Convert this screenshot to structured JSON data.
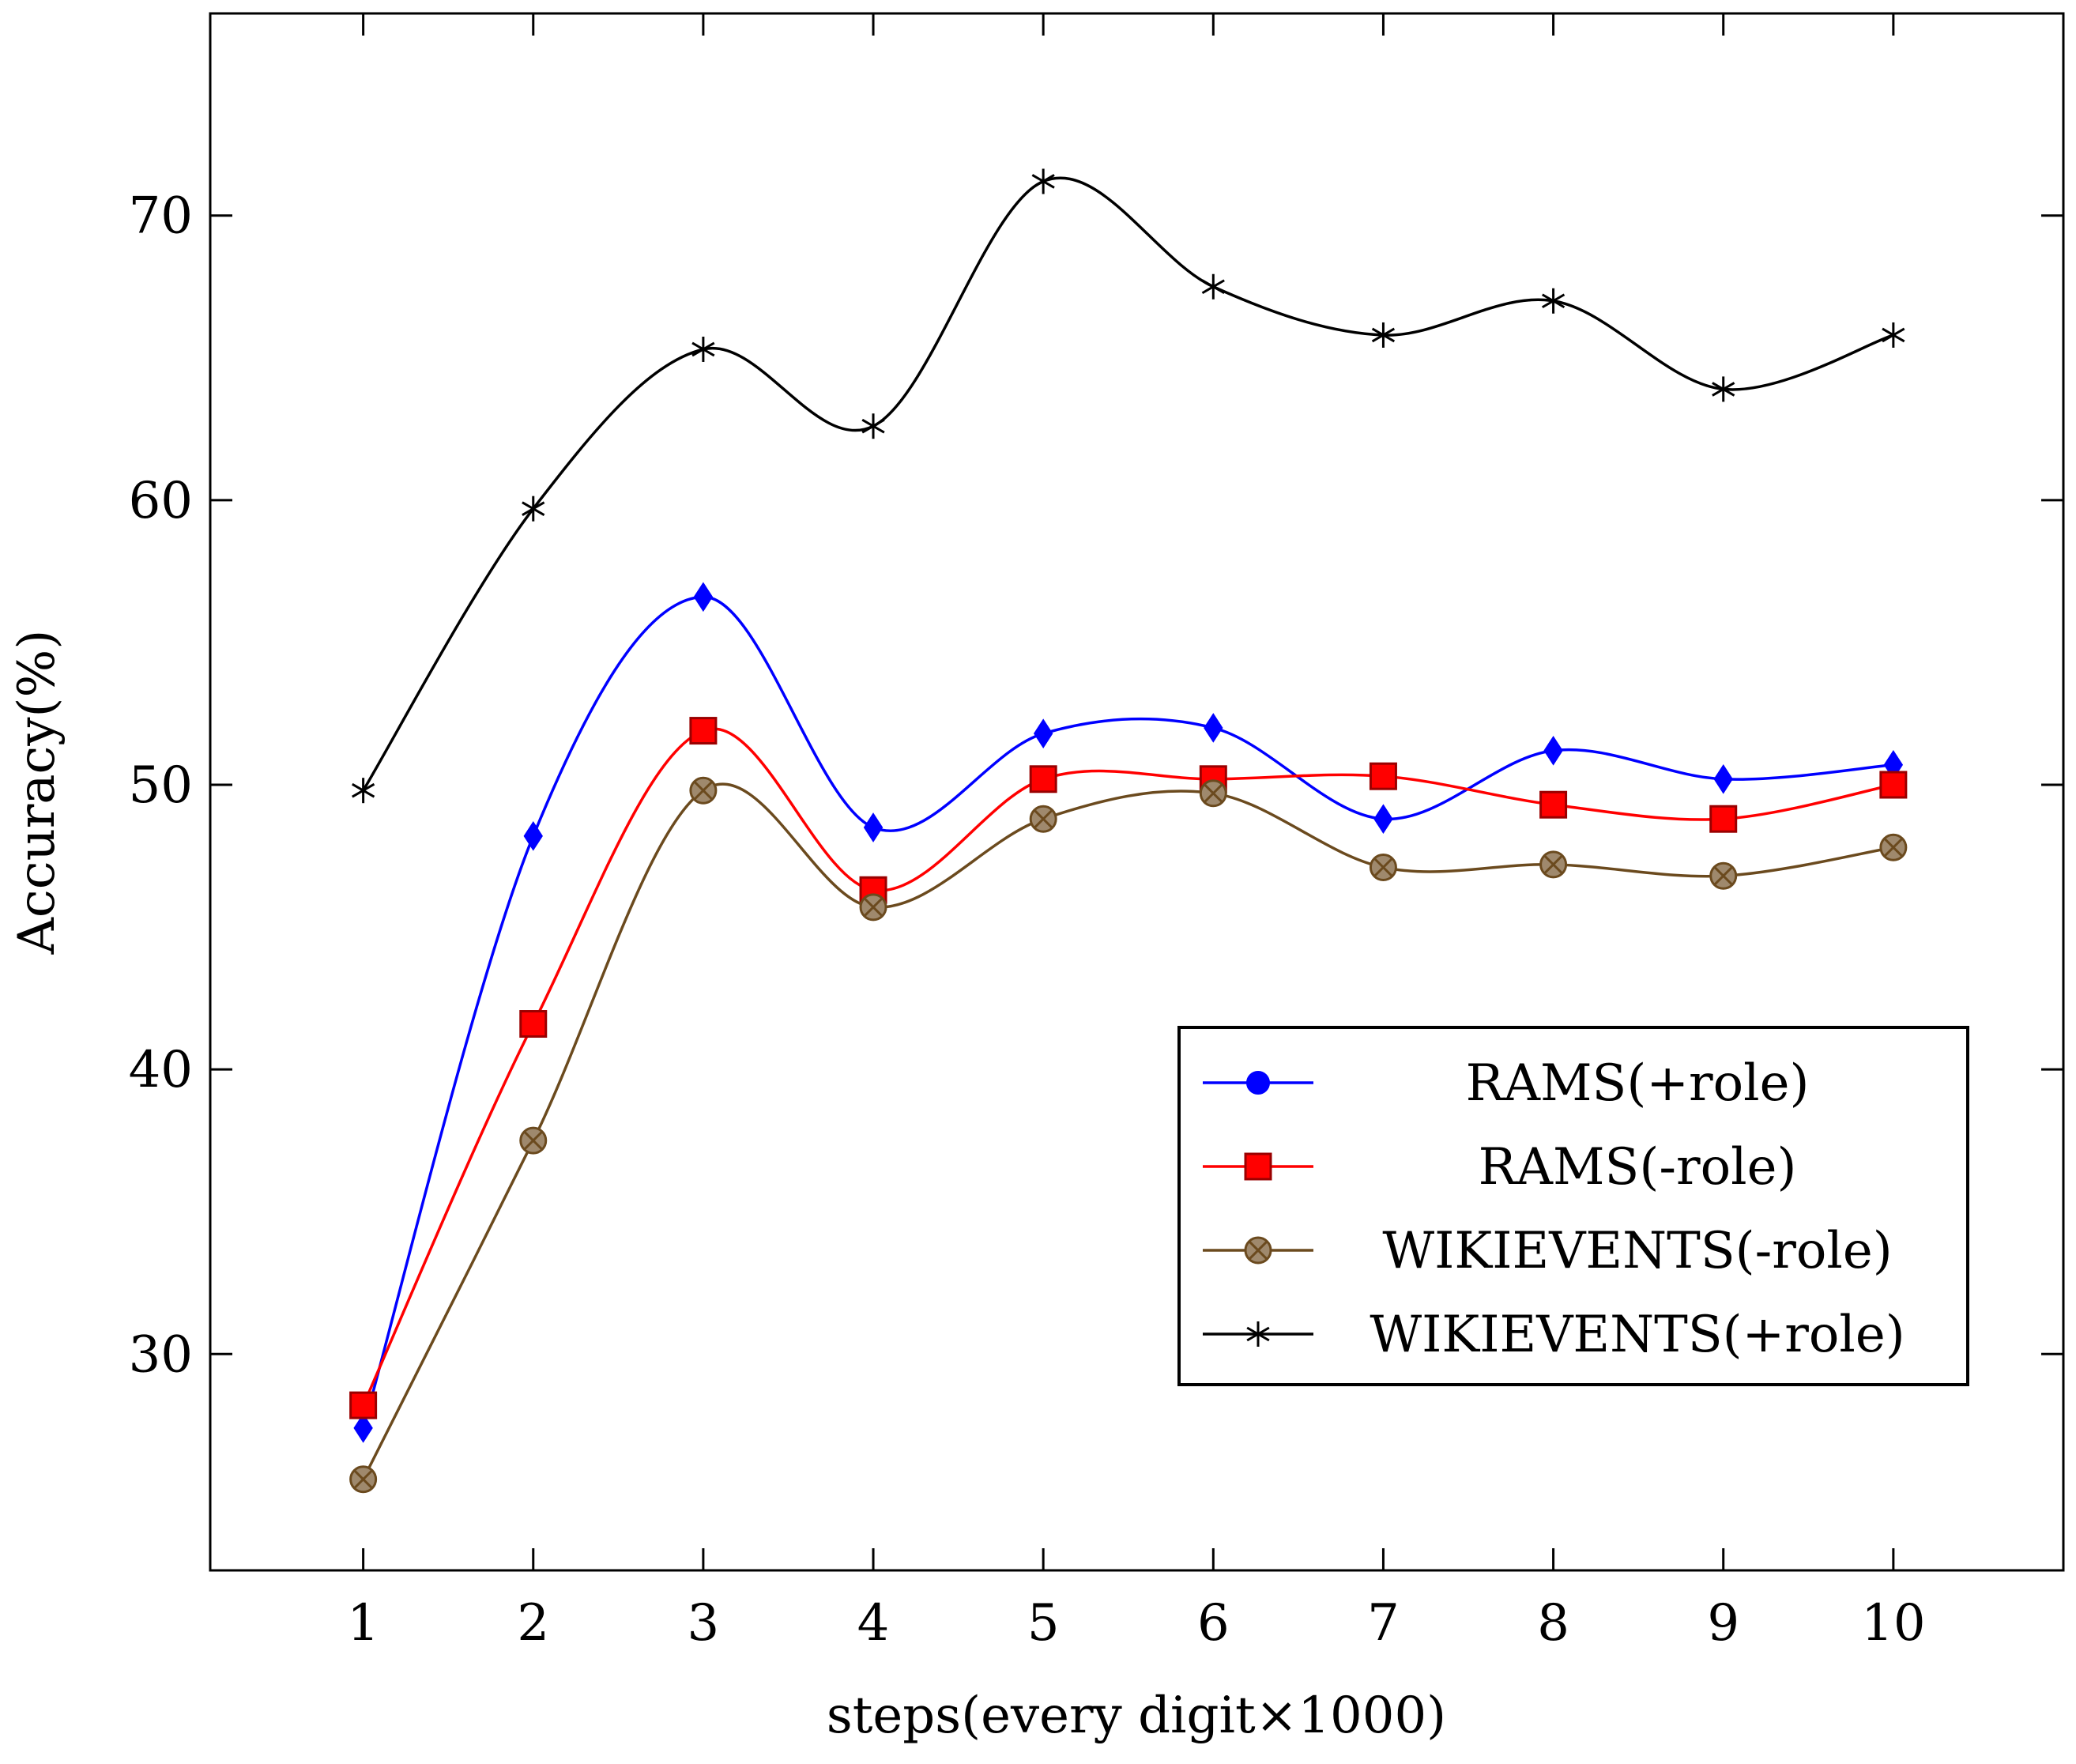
{
  "chart_data": {
    "type": "line",
    "title": "",
    "xlabel": "steps(every digit×1000)",
    "ylabel": "Accuracy(%)",
    "x": [
      1,
      2,
      3,
      4,
      5,
      6,
      7,
      8,
      9,
      10
    ],
    "x_tick_labels": [
      "1",
      "2",
      "3",
      "4",
      "5",
      "6",
      "7",
      "8",
      "9",
      "10"
    ],
    "y_tick_labels": [
      "30",
      "40",
      "50",
      "60",
      "70"
    ],
    "y_ticks": [
      30,
      40,
      50,
      60,
      70
    ],
    "xlim": [
      0.1,
      11
    ],
    "ylim": [
      22.4,
      77.1
    ],
    "grid": false,
    "legend_position": "lower-right",
    "series": [
      {
        "name": "RAMS(+role)",
        "color": "#0000ff",
        "marker": "diamond",
        "legend_marker": "circle",
        "values": [
          27.4,
          48.2,
          56.6,
          48.5,
          51.8,
          52.0,
          48.8,
          51.2,
          50.2,
          50.7
        ]
      },
      {
        "name": "RAMS(-role)",
        "color": "#ff0000",
        "marker": "square",
        "legend_marker": "square",
        "values": [
          28.2,
          41.6,
          51.9,
          46.3,
          50.2,
          50.2,
          50.3,
          49.3,
          48.8,
          50.0
        ]
      },
      {
        "name": "WIKIEVENTS(-role)",
        "color": "#6b4a1e",
        "marker": "otimes",
        "legend_marker": "otimes",
        "values": [
          25.6,
          37.5,
          49.8,
          45.7,
          48.8,
          49.7,
          47.1,
          47.2,
          46.8,
          47.8
        ]
      },
      {
        "name": "WIKIEVENTS(+role)",
        "color": "#000000",
        "marker": "asterisk",
        "legend_marker": "asterisk",
        "values": [
          49.8,
          59.7,
          65.3,
          62.6,
          71.2,
          67.5,
          65.8,
          67.0,
          63.9,
          65.8
        ]
      }
    ]
  }
}
